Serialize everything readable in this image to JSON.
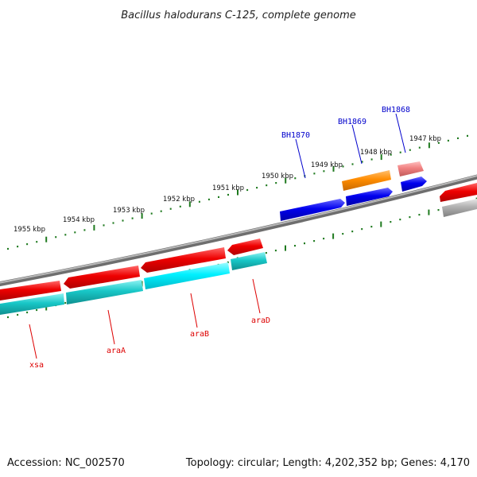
{
  "title": "Bacillus halodurans C-125, complete genome",
  "footer": {
    "accession": "Accession: NC_002570",
    "stats": "Topology: circular; Length: 4,202,352 bp; Genes: 4,170"
  },
  "scale_labels": [
    "1955 kbp",
    "1954 kbp",
    "1953 kbp",
    "1952 kbp",
    "1951 kbp",
    "1950 kbp",
    "1949 kbp",
    "1948 kbp",
    "1947 kbp"
  ],
  "gene_labels_top": [
    "BH1870",
    "BH1869",
    "BH1868"
  ],
  "gene_labels_bottom": [
    "xsa",
    "araA",
    "araB",
    "araD"
  ],
  "colors": {
    "backbone": "#8a8a8a",
    "tick": "#1f7a1f",
    "red": "#ee0000",
    "cyan": "#18c7c7",
    "blue": "#0000ee",
    "orange": "#ff8c00",
    "pink": "#f08080",
    "gray": "#b0b0b0",
    "label_top": "#0000cc",
    "label_bottom": "#dd0000"
  }
}
